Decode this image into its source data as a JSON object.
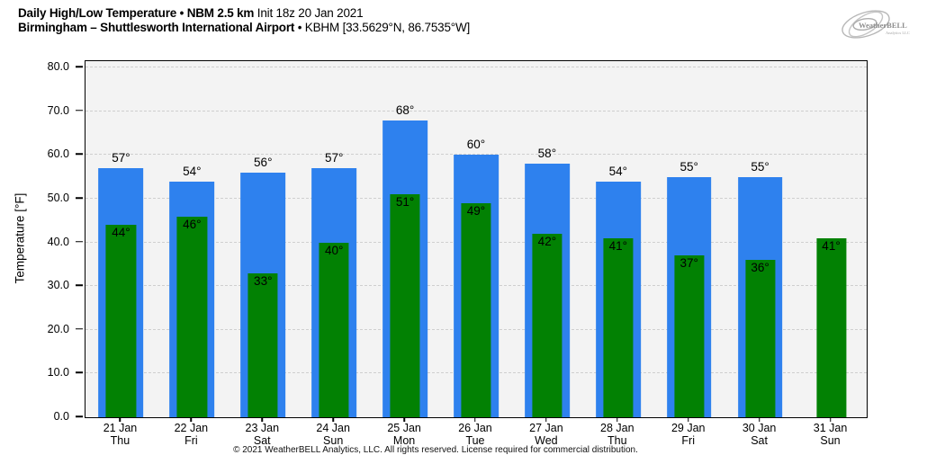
{
  "header": {
    "title_bold": "Daily High/Low Temperature • NBM 2.5 km",
    "title_normal": "Init 18z 20 Jan 2021",
    "subtitle_bold": "Birmingham – Shuttlesworth International Airport",
    "subtitle_normal": "• KBHM [33.5629°N, 86.7535°W]"
  },
  "logo": {
    "name": "WeatherBELL",
    "subtext": "Analytics LLC"
  },
  "chart_data": {
    "type": "bar",
    "title": "Daily High/Low Temperature • NBM 2.5 km Init 18z 20 Jan 2021",
    "subtitle": "Birmingham – Shuttlesworth International Airport • KBHM [33.5629°N, 86.7535°W]",
    "xlabel": "",
    "ylabel": "Temperature [°F]",
    "ylim": [
      0,
      81.5
    ],
    "yticks": [
      0,
      10,
      20,
      30,
      40,
      50,
      60,
      70,
      80
    ],
    "ytick_decimals": 1,
    "grid": "horizontal dashed",
    "legend": "none",
    "value_label_suffix": "°",
    "categories": [
      {
        "date": "21 Jan",
        "weekday": "Thu"
      },
      {
        "date": "22 Jan",
        "weekday": "Fri"
      },
      {
        "date": "23 Jan",
        "weekday": "Sat"
      },
      {
        "date": "24 Jan",
        "weekday": "Sun"
      },
      {
        "date": "25 Jan",
        "weekday": "Mon"
      },
      {
        "date": "26 Jan",
        "weekday": "Tue"
      },
      {
        "date": "27 Jan",
        "weekday": "Wed"
      },
      {
        "date": "28 Jan",
        "weekday": "Thu"
      },
      {
        "date": "29 Jan",
        "weekday": "Fri"
      },
      {
        "date": "30 Jan",
        "weekday": "Sat"
      },
      {
        "date": "31 Jan",
        "weekday": "Sun"
      }
    ],
    "series": [
      {
        "name": "High",
        "color": "#2e81ee",
        "bar_width_pct": 63,
        "values": [
          57,
          54,
          56,
          57,
          68,
          60,
          58,
          54,
          55,
          55,
          null
        ]
      },
      {
        "name": "Low",
        "color": "#028103",
        "bar_width_pct": 42,
        "values": [
          44,
          46,
          33,
          40,
          51,
          49,
          42,
          41,
          37,
          36,
          41
        ]
      }
    ]
  },
  "colors": {
    "high_bar": "#2e81ee",
    "low_bar": "#028103",
    "plot_background": "#f3f3f3",
    "gridline": "#cfcfcf",
    "spine": "#000000"
  },
  "footer": {
    "copyright": "© 2021 WeatherBELL Analytics, LLC. All rights reserved. License required for commercial distribution."
  }
}
